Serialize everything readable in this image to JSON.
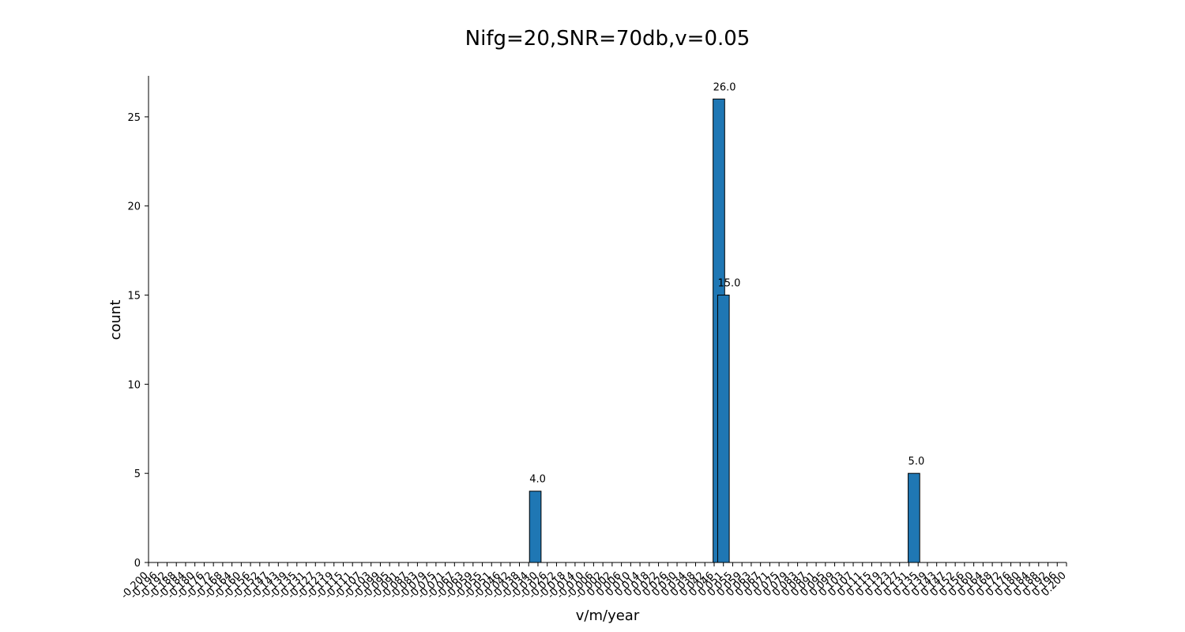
{
  "chart_data": {
    "type": "bar",
    "title": "Nifg=20,SNR=70db,v=0.05",
    "xlabel": "v/m/year",
    "ylabel": "count",
    "xlim": [
      -0.2,
      0.2
    ],
    "ylim": [
      0,
      27.3
    ],
    "yticks": [
      0,
      5,
      10,
      15,
      20,
      25
    ],
    "xticks": [
      "-0.200",
      "-0.196",
      "-0.192",
      "-0.188",
      "-0.184",
      "-0.180",
      "-0.176",
      "-0.172",
      "-0.168",
      "-0.164",
      "-0.160",
      "-0.156",
      "-0.152",
      "-0.147",
      "-0.143",
      "-0.139",
      "-0.135",
      "-0.131",
      "-0.127",
      "-0.123",
      "-0.119",
      "-0.115",
      "-0.111",
      "-0.107",
      "-0.103",
      "-0.099",
      "-0.095",
      "-0.091",
      "-0.087",
      "-0.083",
      "-0.079",
      "-0.075",
      "-0.071",
      "-0.067",
      "-0.063",
      "-0.059",
      "-0.055",
      "-0.051",
      "-0.046",
      "-0.042",
      "-0.038",
      "-0.034",
      "-0.030",
      "-0.026",
      "-0.022",
      "-0.018",
      "-0.014",
      "-0.010",
      "-0.006",
      "-0.002",
      "0.002",
      "0.006",
      "0.010",
      "0.014",
      "0.018",
      "0.022",
      "0.026",
      "0.030",
      "0.034",
      "0.038",
      "0.042",
      "0.046",
      "0.051",
      "0.055",
      "0.059",
      "0.063",
      "0.067",
      "0.071",
      "0.075",
      "0.079",
      "0.083",
      "0.087",
      "0.091",
      "0.095",
      "0.099",
      "0.103",
      "0.107",
      "0.111",
      "0.115",
      "0.119",
      "0.123",
      "0.127",
      "0.131",
      "0.135",
      "0.139",
      "0.143",
      "0.147",
      "0.152",
      "0.156",
      "0.160",
      "0.164",
      "0.168",
      "0.172",
      "0.176",
      "0.180",
      "0.184",
      "0.188",
      "0.192",
      "0.196",
      "0.200"
    ],
    "bars": [
      {
        "x": -0.034,
        "value": 4,
        "label": "4.0"
      },
      {
        "x": 0.046,
        "value": 26,
        "label": "26.0"
      },
      {
        "x": 0.048,
        "value": 15,
        "label": "15.0"
      },
      {
        "x": 0.131,
        "value": 5,
        "label": "5.0"
      }
    ],
    "bar_width": 0.00505,
    "bar_color": "#1f77b4",
    "edge_color": "#000000",
    "grid": false,
    "legend": "none"
  }
}
